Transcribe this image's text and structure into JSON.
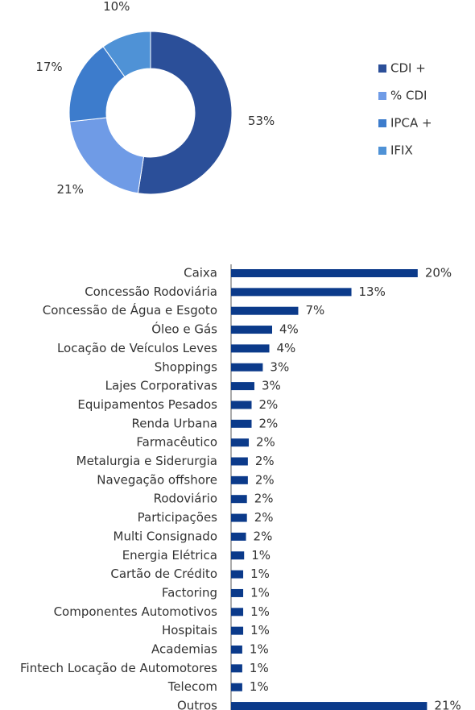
{
  "chart_data": [
    {
      "type": "donut",
      "categories": [
        "CDI +",
        "% CDI",
        "IPCA +",
        "IFIX"
      ],
      "values": [
        53,
        21,
        17,
        10
      ],
      "value_labels": [
        "53%",
        "21%",
        "17%",
        "10%"
      ],
      "colors": [
        "#2b4f99",
        "#6f9be6",
        "#3d7ccc",
        "#4f92d6"
      ]
    },
    {
      "type": "hbar",
      "categories": [
        "Caixa",
        "Concessão Rodoviária",
        "Concessão de Água e Esgoto",
        "Óleo e Gás",
        "Locação de Veículos Leves",
        "Shoppings",
        "Lajes Corporativas",
        "Equipamentos Pesados",
        "Renda Urbana",
        "Farmacêutico",
        "Metalurgia e Siderurgia",
        "Navegação offshore",
        "Rodoviário",
        "Participações",
        "Multi Consignado",
        "Energia Elétrica",
        "Cartão de Crédito",
        "Factoring",
        "Componentes Automotivos",
        "Hospitais",
        "Academias",
        "Fintech Locação de Automotores",
        "Telecom",
        "Outros"
      ],
      "values": [
        20.0,
        12.9,
        7.2,
        4.4,
        4.1,
        3.4,
        2.5,
        2.2,
        2.2,
        1.9,
        1.8,
        1.8,
        1.7,
        1.7,
        1.6,
        1.4,
        1.3,
        1.3,
        1.3,
        1.3,
        1.2,
        1.2,
        1.2,
        21.0
      ],
      "value_labels": [
        "20%",
        "13%",
        "7%",
        "4%",
        "4%",
        "3%",
        "3%",
        "2%",
        "2%",
        "2%",
        "2%",
        "2%",
        "2%",
        "2%",
        "2%",
        "1%",
        "1%",
        "1%",
        "1%",
        "1%",
        "1%",
        "1%",
        "1%",
        "21%"
      ],
      "color": "#0b3a8a",
      "xlim": [
        0,
        22
      ]
    }
  ]
}
